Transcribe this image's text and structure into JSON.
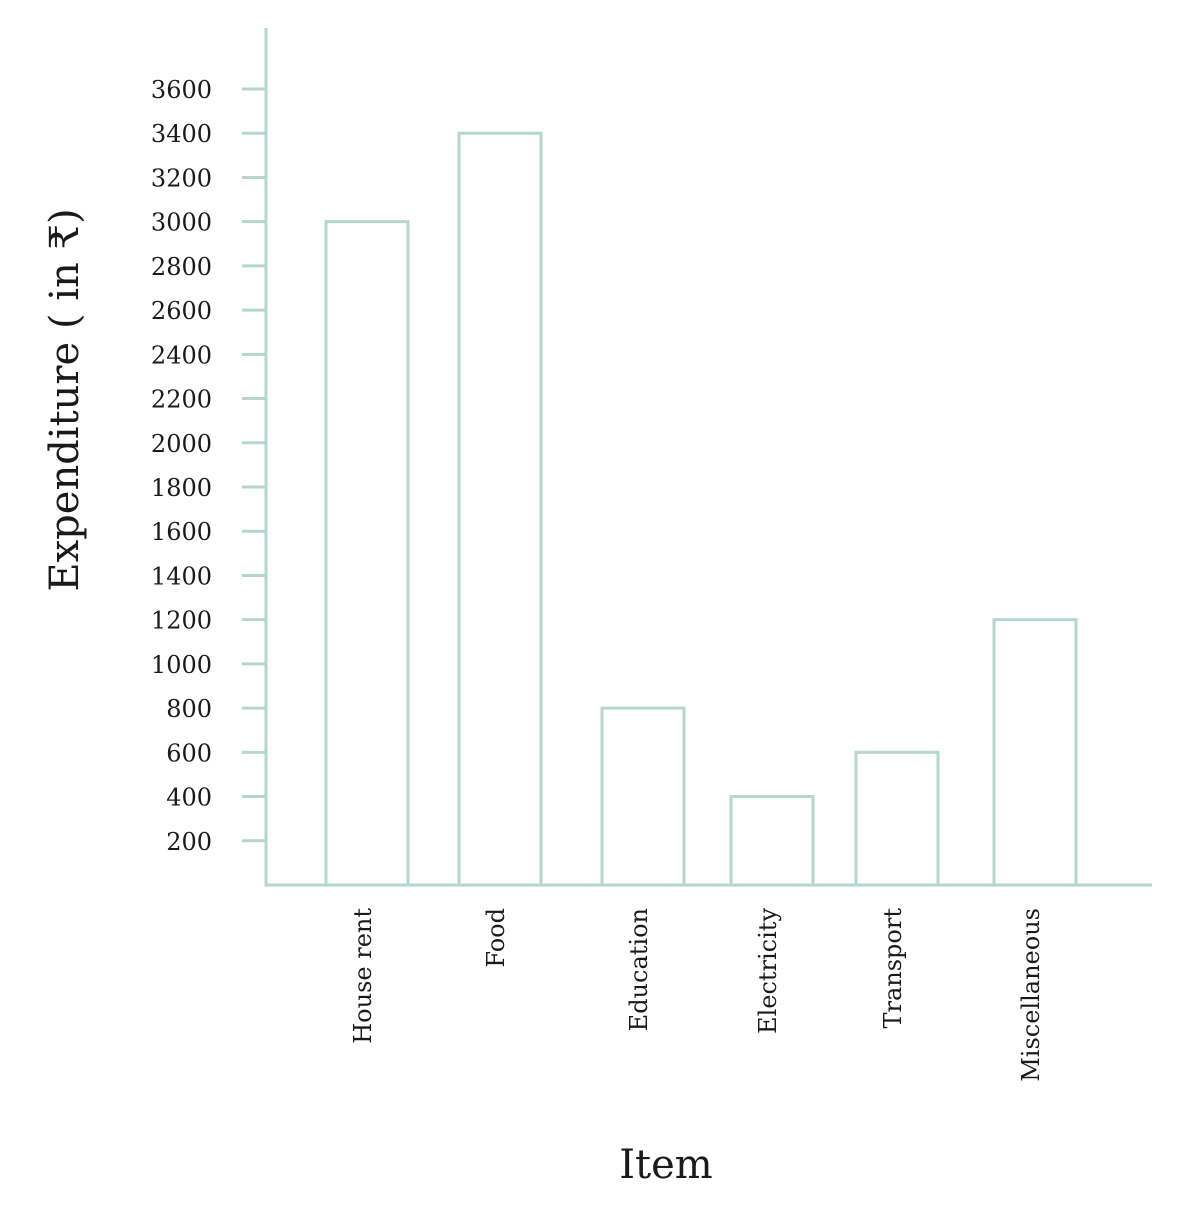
{
  "chart_data": {
    "type": "bar",
    "title": "",
    "xlabel": "Item",
    "ylabel": "Expenditure ( in ₹)",
    "categories": [
      "House rent",
      "Food",
      "Education",
      "Electricity",
      "Transport",
      "Miscellaneous"
    ],
    "values": [
      3000,
      3400,
      800,
      400,
      600,
      1200
    ],
    "yticks": [
      200,
      400,
      600,
      800,
      1000,
      1200,
      1400,
      1600,
      1800,
      2000,
      2200,
      2400,
      2600,
      2800,
      3000,
      3200,
      3400,
      3600
    ],
    "ylim": [
      0,
      3800
    ],
    "grid": false,
    "legend": "none",
    "colors": {
      "bar_stroke": "#b5d6cf",
      "bar_fill": "#ffffff",
      "axis": "#b5d6cf",
      "text": "#1a1a1a"
    }
  }
}
